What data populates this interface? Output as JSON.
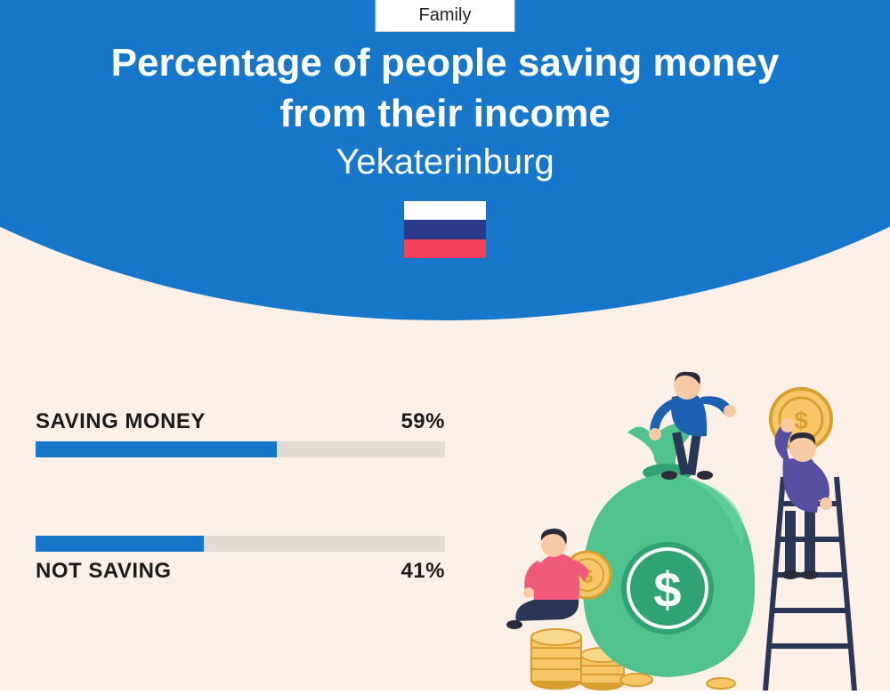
{
  "page": {
    "background_color": "#fbf0e7",
    "header_color": "#1677cb"
  },
  "category": {
    "label": "Family",
    "bg": "#ffffff",
    "text_color": "#222222"
  },
  "title": {
    "line1": "Percentage of people saving money",
    "line2": "from their income",
    "color": "#ffffff",
    "fontsize_main": 44,
    "fontsize_sub": 40
  },
  "subtitle": {
    "text": "Yekaterinburg",
    "color": "#ffffff"
  },
  "flag": {
    "stripe1": "#ffffff",
    "stripe2": "#2b3a8b",
    "stripe3": "#f3405a"
  },
  "bars": {
    "track_color": "#e4dcd2",
    "fill_color": "#1677cb",
    "label_color": "#1b1b1b",
    "label_fontsize": 24,
    "items": [
      {
        "label": "SAVING MONEY",
        "value": 59,
        "value_text": "59%",
        "label_position": "above"
      },
      {
        "label": "NOT SAVING",
        "value": 41,
        "value_text": "41%",
        "label_position": "below"
      }
    ],
    "group_spacing": 88
  },
  "illustration": {
    "bag_color": "#4fc28e",
    "bag_shadow": "#2fa373",
    "coin_fill": "#f6c767",
    "coin_stroke": "#d99f2e",
    "person1_shirt": "#1d61b3",
    "person1_pants": "#2b3555",
    "person2_shirt": "#564fa0",
    "person2_pants": "#2b3555",
    "person3_shirt": "#f05a7a",
    "person3_pants": "#2b3555",
    "skin": "#f8c9a5",
    "hair": "#2b2b3a",
    "ladder": "#2b3555",
    "dollar_color": "#ffffff"
  }
}
